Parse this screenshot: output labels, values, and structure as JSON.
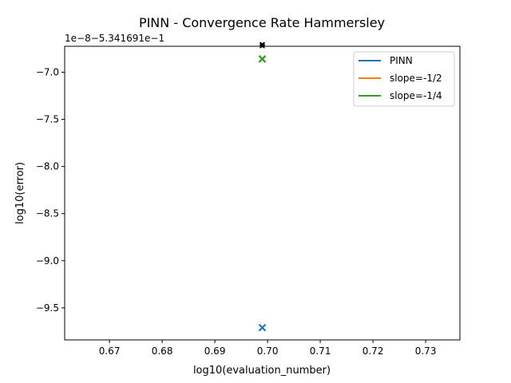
{
  "chart_data": {
    "type": "scatter",
    "title": "PINN - Convergence Rate Hammersley",
    "xlabel": "log10(evaluation_number)",
    "ylabel": "log10(error)",
    "offset_text": "1e−8−5.341691e−1",
    "xlim": [
      0.6615,
      0.7365
    ],
    "ylim": [
      -9.84,
      -6.725
    ],
    "x_ticks": [
      {
        "value": 0.67,
        "label": "0.67"
      },
      {
        "value": 0.68,
        "label": "0.68"
      },
      {
        "value": 0.69,
        "label": "0.69"
      },
      {
        "value": 0.7,
        "label": "0.70"
      },
      {
        "value": 0.71,
        "label": "0.71"
      },
      {
        "value": 0.72,
        "label": "0.72"
      },
      {
        "value": 0.73,
        "label": "0.73"
      }
    ],
    "y_ticks": [
      {
        "value": -7.0,
        "label": "−7.0"
      },
      {
        "value": -7.5,
        "label": "−7.5"
      },
      {
        "value": -8.0,
        "label": "−8.0"
      },
      {
        "value": -8.5,
        "label": "−8.5"
      },
      {
        "value": -9.0,
        "label": "−9.0"
      },
      {
        "value": -9.5,
        "label": "−9.5"
      }
    ],
    "series": [
      {
        "name": "PINN",
        "color": "#1f77b4",
        "marker": "x",
        "points": [
          {
            "x": 0.699,
            "y": -9.71
          }
        ]
      },
      {
        "name": "slope=-1/2",
        "color": "#ff7f0e",
        "marker": "x",
        "points": [
          {
            "x": 0.699,
            "y": -6.86
          }
        ]
      },
      {
        "name": "slope=-1/4",
        "color": "#2ca02c",
        "marker": "x",
        "points": [
          {
            "x": 0.699,
            "y": -6.86
          }
        ]
      }
    ],
    "overflow_markers": {
      "x": 0.699,
      "count": 3,
      "color": "#000000"
    },
    "grid": false,
    "legend": {
      "placement": "top-right"
    }
  }
}
